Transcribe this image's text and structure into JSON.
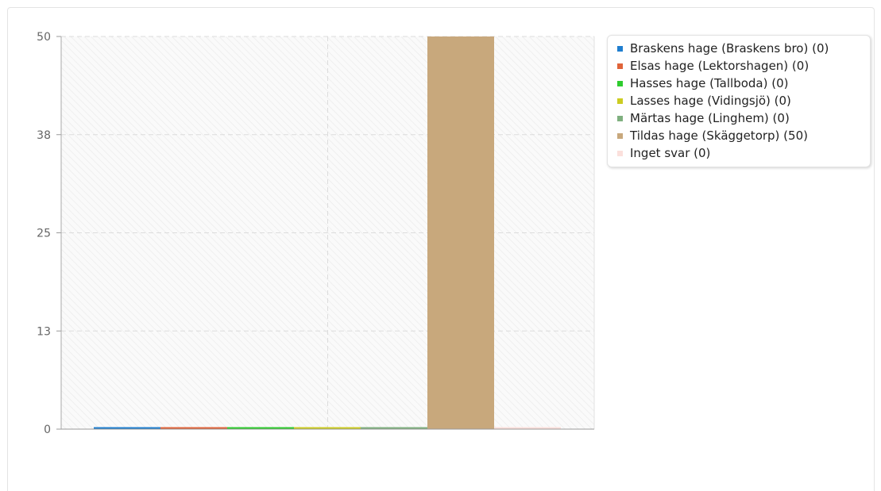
{
  "chart_data": {
    "type": "bar",
    "title": "",
    "xlabel": "",
    "ylabel": "",
    "ylim": [
      0,
      50
    ],
    "yticks": [
      "0",
      "13",
      "25",
      "38",
      "50"
    ],
    "grid": true,
    "legend_position": "right",
    "categories": [
      "Braskens hage (Braskens bro)",
      "Elsas hage (Lektorshagen)",
      "Hasses hage (Tallboda)",
      "Lasses hage (Vidingsjö)",
      "Märtas hage (Linghem)",
      "Tildas hage (Skäggetorp)",
      "Inget svar"
    ],
    "values": [
      0,
      0,
      0,
      0,
      0,
      50,
      0
    ],
    "colors": [
      "#1f7ecf",
      "#e0643a",
      "#2ecc2e",
      "#cccc22",
      "#7fb07f",
      "#c8a87c",
      "#fbe0dc"
    ],
    "legend": [
      "Braskens hage (Braskens bro) (0)",
      "Elsas hage (Lektorshagen) (0)",
      "Hasses hage (Tallboda) (0)",
      "Lasses hage (Vidingsjö) (0)",
      "Märtas hage (Linghem) (0)",
      "Tildas hage (Skäggetorp) (50)",
      "Inget svar (0)"
    ]
  }
}
